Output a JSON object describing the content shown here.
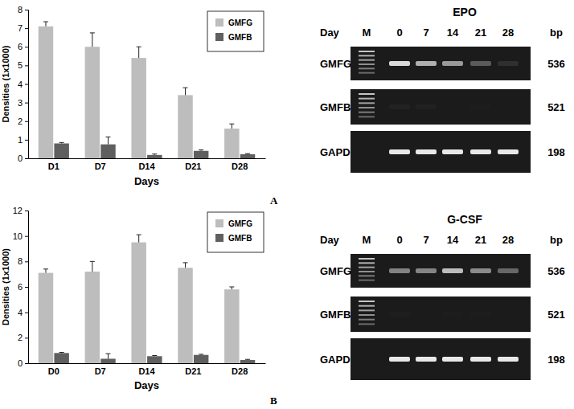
{
  "chart_data": [
    {
      "type": "bar",
      "x_label": "Days",
      "y_label": "Densities (1x1000)",
      "categories": [
        "D1",
        "D7",
        "D14",
        "D21",
        "D28"
      ],
      "series": [
        {
          "name": "GMFG",
          "color": "#bdbdbd",
          "values": [
            7.1,
            6.0,
            5.4,
            3.4,
            1.6
          ],
          "errors": [
            0.25,
            0.75,
            0.6,
            0.4,
            0.25
          ]
        },
        {
          "name": "GMFB",
          "color": "#5f5f5f",
          "values": [
            0.8,
            0.75,
            0.18,
            0.4,
            0.22
          ],
          "errors": [
            0.05,
            0.4,
            0.05,
            0.05,
            0.03
          ]
        }
      ],
      "ylim": [
        0,
        8
      ],
      "yticks": [
        0,
        1,
        2,
        3,
        4,
        5,
        6,
        7,
        8
      ],
      "grid": false,
      "legend": "upper right",
      "annotations": [
        "A"
      ]
    },
    {
      "type": "bar",
      "x_label": "Days",
      "y_label": "Densities (1x1000)",
      "categories": [
        "D0",
        "D7",
        "D14",
        "D21",
        "D28"
      ],
      "series": [
        {
          "name": "GMFG",
          "color": "#bdbdbd",
          "values": [
            7.1,
            7.2,
            9.5,
            7.5,
            5.8
          ],
          "errors": [
            0.3,
            0.8,
            0.6,
            0.4,
            0.2
          ]
        },
        {
          "name": "GMFB",
          "color": "#5f5f5f",
          "values": [
            0.8,
            0.35,
            0.55,
            0.65,
            0.25
          ],
          "errors": [
            0.05,
            0.4,
            0.05,
            0.05,
            0.05
          ]
        }
      ],
      "ylim": [
        0,
        12
      ],
      "yticks": [
        0,
        2,
        4,
        6,
        8,
        10,
        12
      ],
      "grid": false,
      "legend": "upper right",
      "annotations": [
        "B"
      ]
    }
  ],
  "gels": [
    {
      "title": "EPO",
      "day_label": "Day",
      "marker_label": "M",
      "lanes": [
        0,
        7,
        14,
        21,
        28
      ],
      "size_label": "bp",
      "rows": [
        {
          "name": "GMFG",
          "size": 536
        },
        {
          "name": "GMFB",
          "size": 521
        },
        {
          "name": "GAPDH",
          "size": 198
        }
      ]
    },
    {
      "title": "G-CSF",
      "day_label": "Day",
      "marker_label": "M",
      "lanes": [
        0,
        7,
        14,
        21,
        28
      ],
      "size_label": "bp",
      "rows": [
        {
          "name": "GMFG",
          "size": 536
        },
        {
          "name": "GMFB",
          "size": 521
        },
        {
          "name": "GAPDH",
          "size": 198
        }
      ]
    }
  ]
}
